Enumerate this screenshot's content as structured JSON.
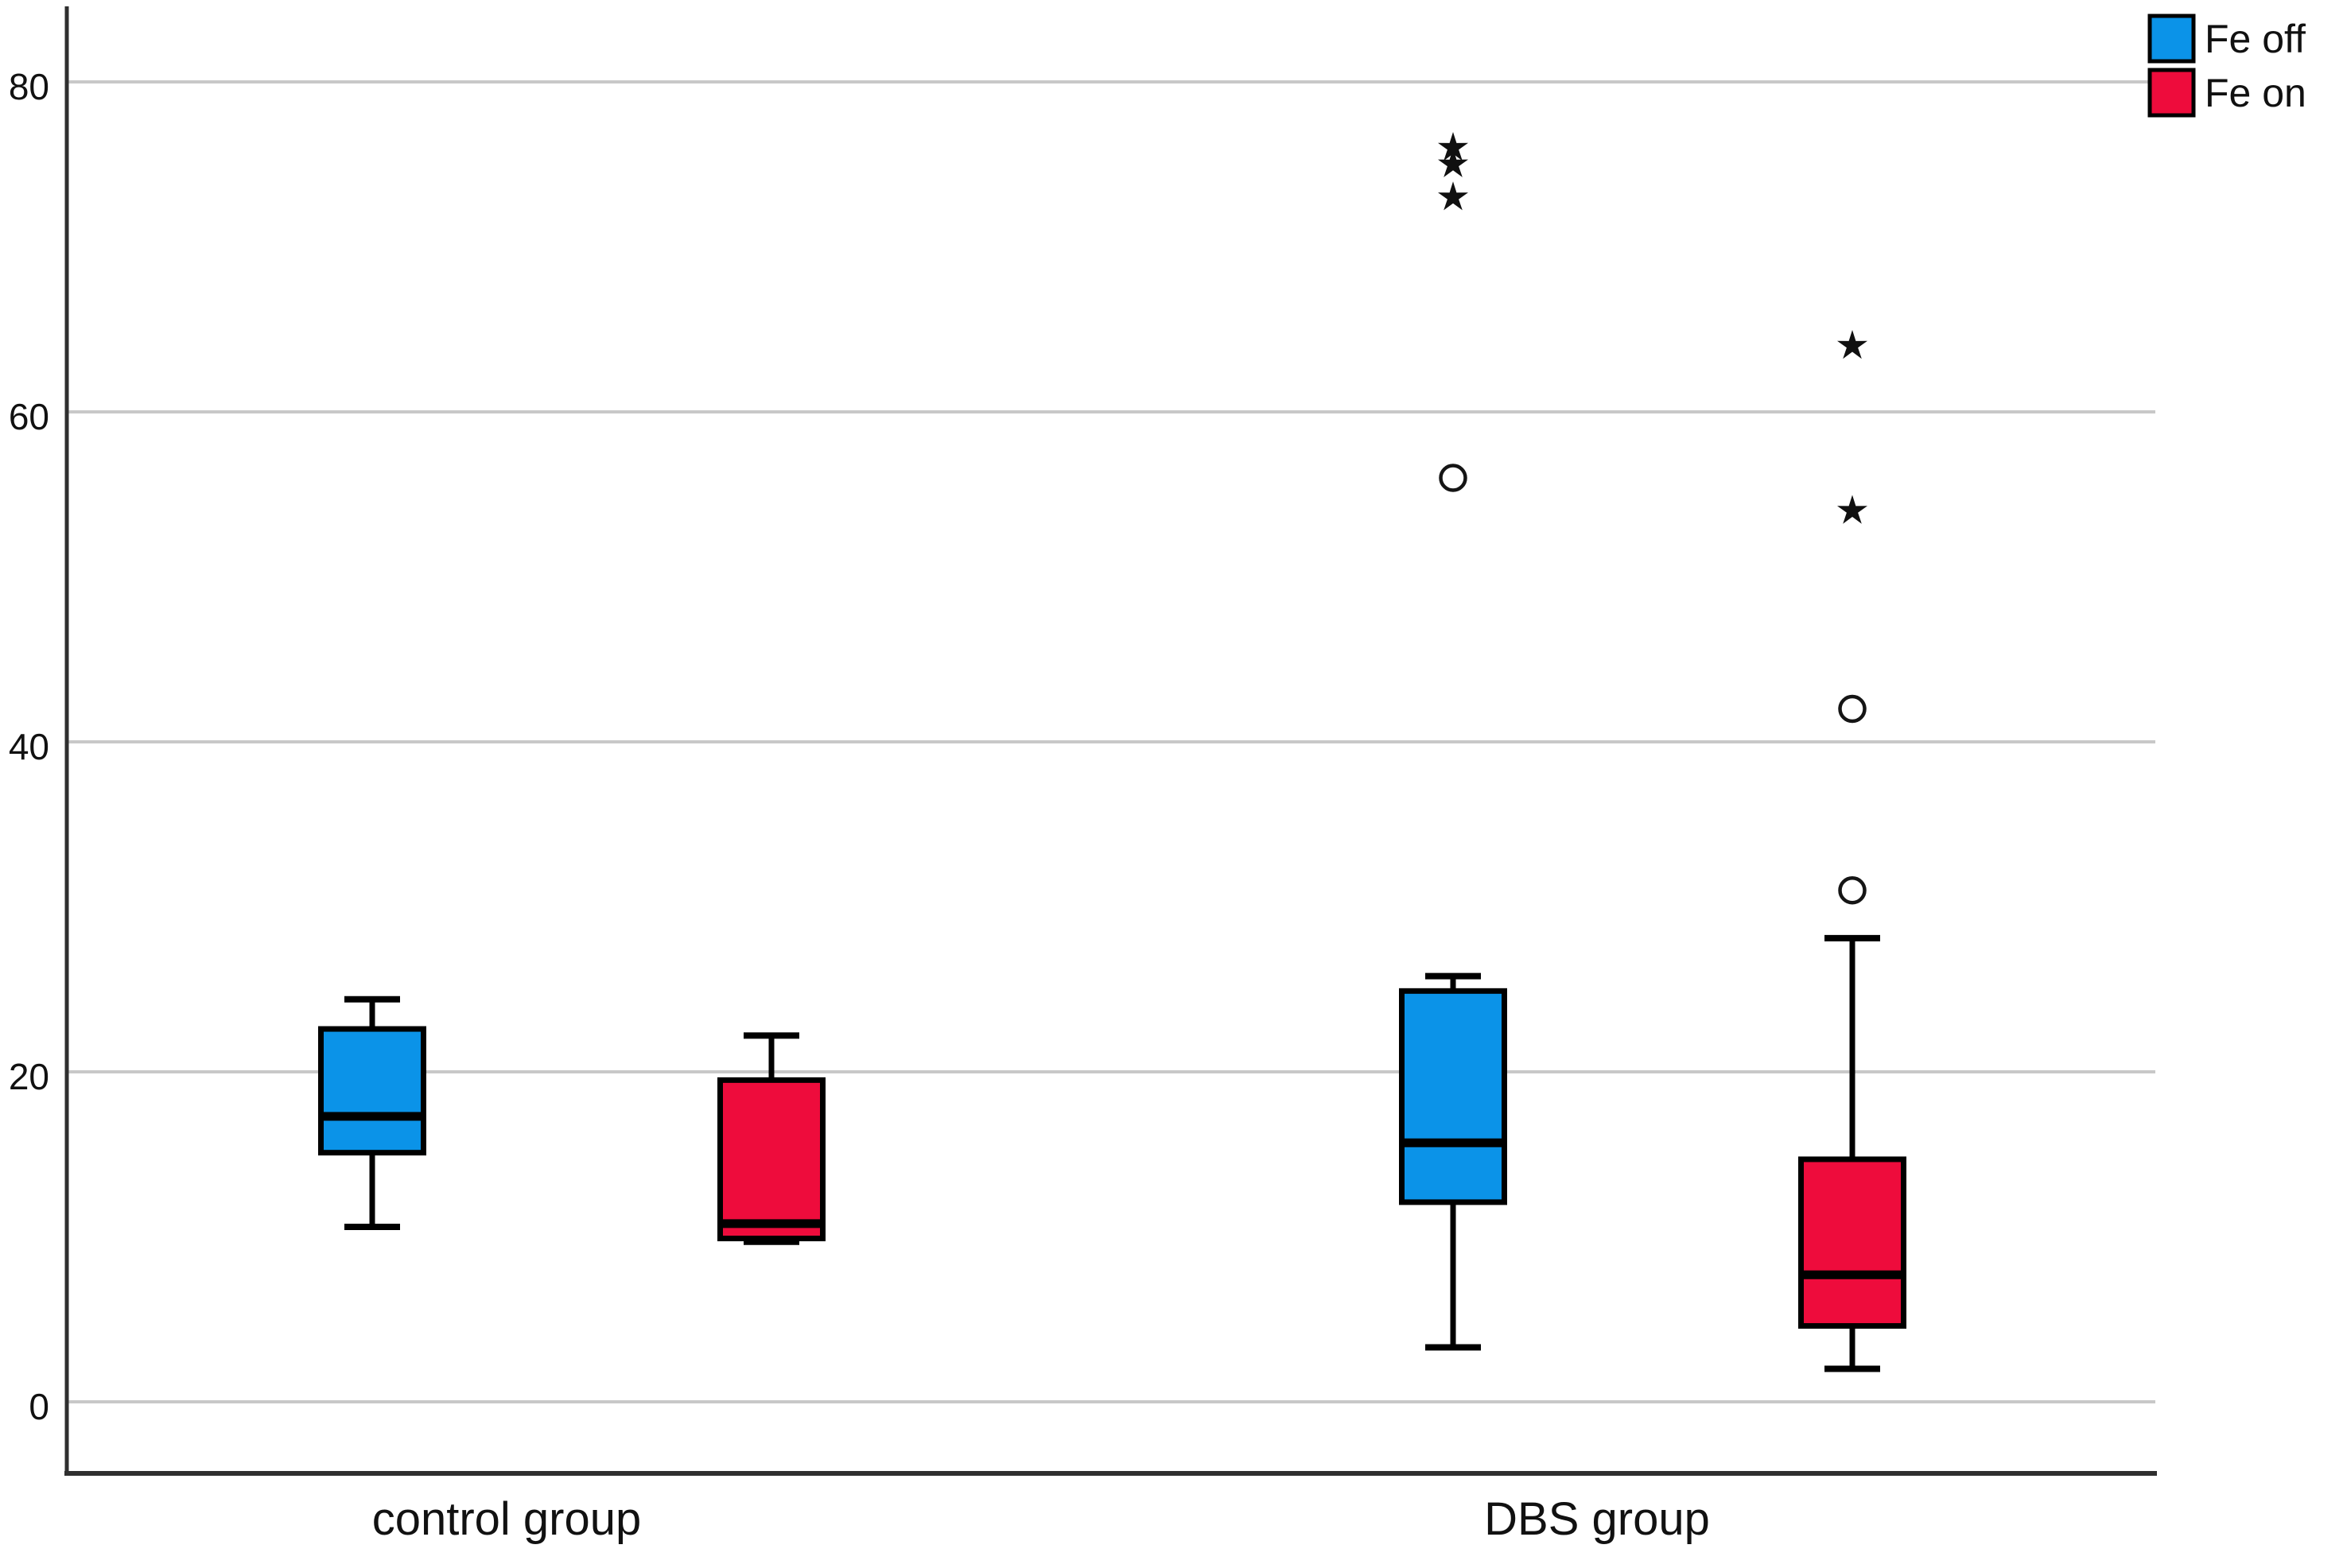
{
  "figure": {
    "background": "#FFFFFF",
    "grid_color": "#C8C8C8",
    "axis_color": "#2F2F2F"
  },
  "legend": {
    "position": "top-right"
  },
  "chart_data": {
    "type": "boxplot",
    "categories": [
      "control group",
      "DBS group"
    ],
    "yticks": [
      0,
      20,
      40,
      60,
      80
    ],
    "ytick_labels": [
      "0",
      "20",
      "40",
      "60",
      "80"
    ],
    "ylim": [
      -4.3,
      84.6
    ],
    "grid": "horizontal",
    "legend_position": "top-right",
    "outlier_marker": "open-circle",
    "extreme_marker": "star-asterisk",
    "series": [
      {
        "name": "Fe off",
        "color": "#0B93E8",
        "boxes": [
          {
            "category": "control group",
            "whisker_low": 10.6,
            "q1": 15.1,
            "median": 17.3,
            "q3": 22.6,
            "whisker_high": 24.4,
            "outliers": [],
            "extremes": []
          },
          {
            "category": "DBS group",
            "whisker_low": 3.3,
            "q1": 12.1,
            "median": 15.7,
            "q3": 24.9,
            "whisker_high": 25.8,
            "outliers": [
              56
            ],
            "extremes": [
              73,
              75,
              76
            ]
          }
        ]
      },
      {
        "name": "Fe on",
        "color": "#EE0C3C",
        "boxes": [
          {
            "category": "control group",
            "whisker_low": 9.7,
            "q1": 9.9,
            "median": 10.8,
            "q3": 19.5,
            "whisker_high": 22.2,
            "outliers": [],
            "extremes": []
          },
          {
            "category": "DBS group",
            "whisker_low": 2.0,
            "q1": 4.6,
            "median": 7.7,
            "q3": 14.7,
            "whisker_high": 28.1,
            "outliers": [
              31,
              42
            ],
            "extremes": [
              54,
              64
            ]
          }
        ]
      }
    ]
  }
}
